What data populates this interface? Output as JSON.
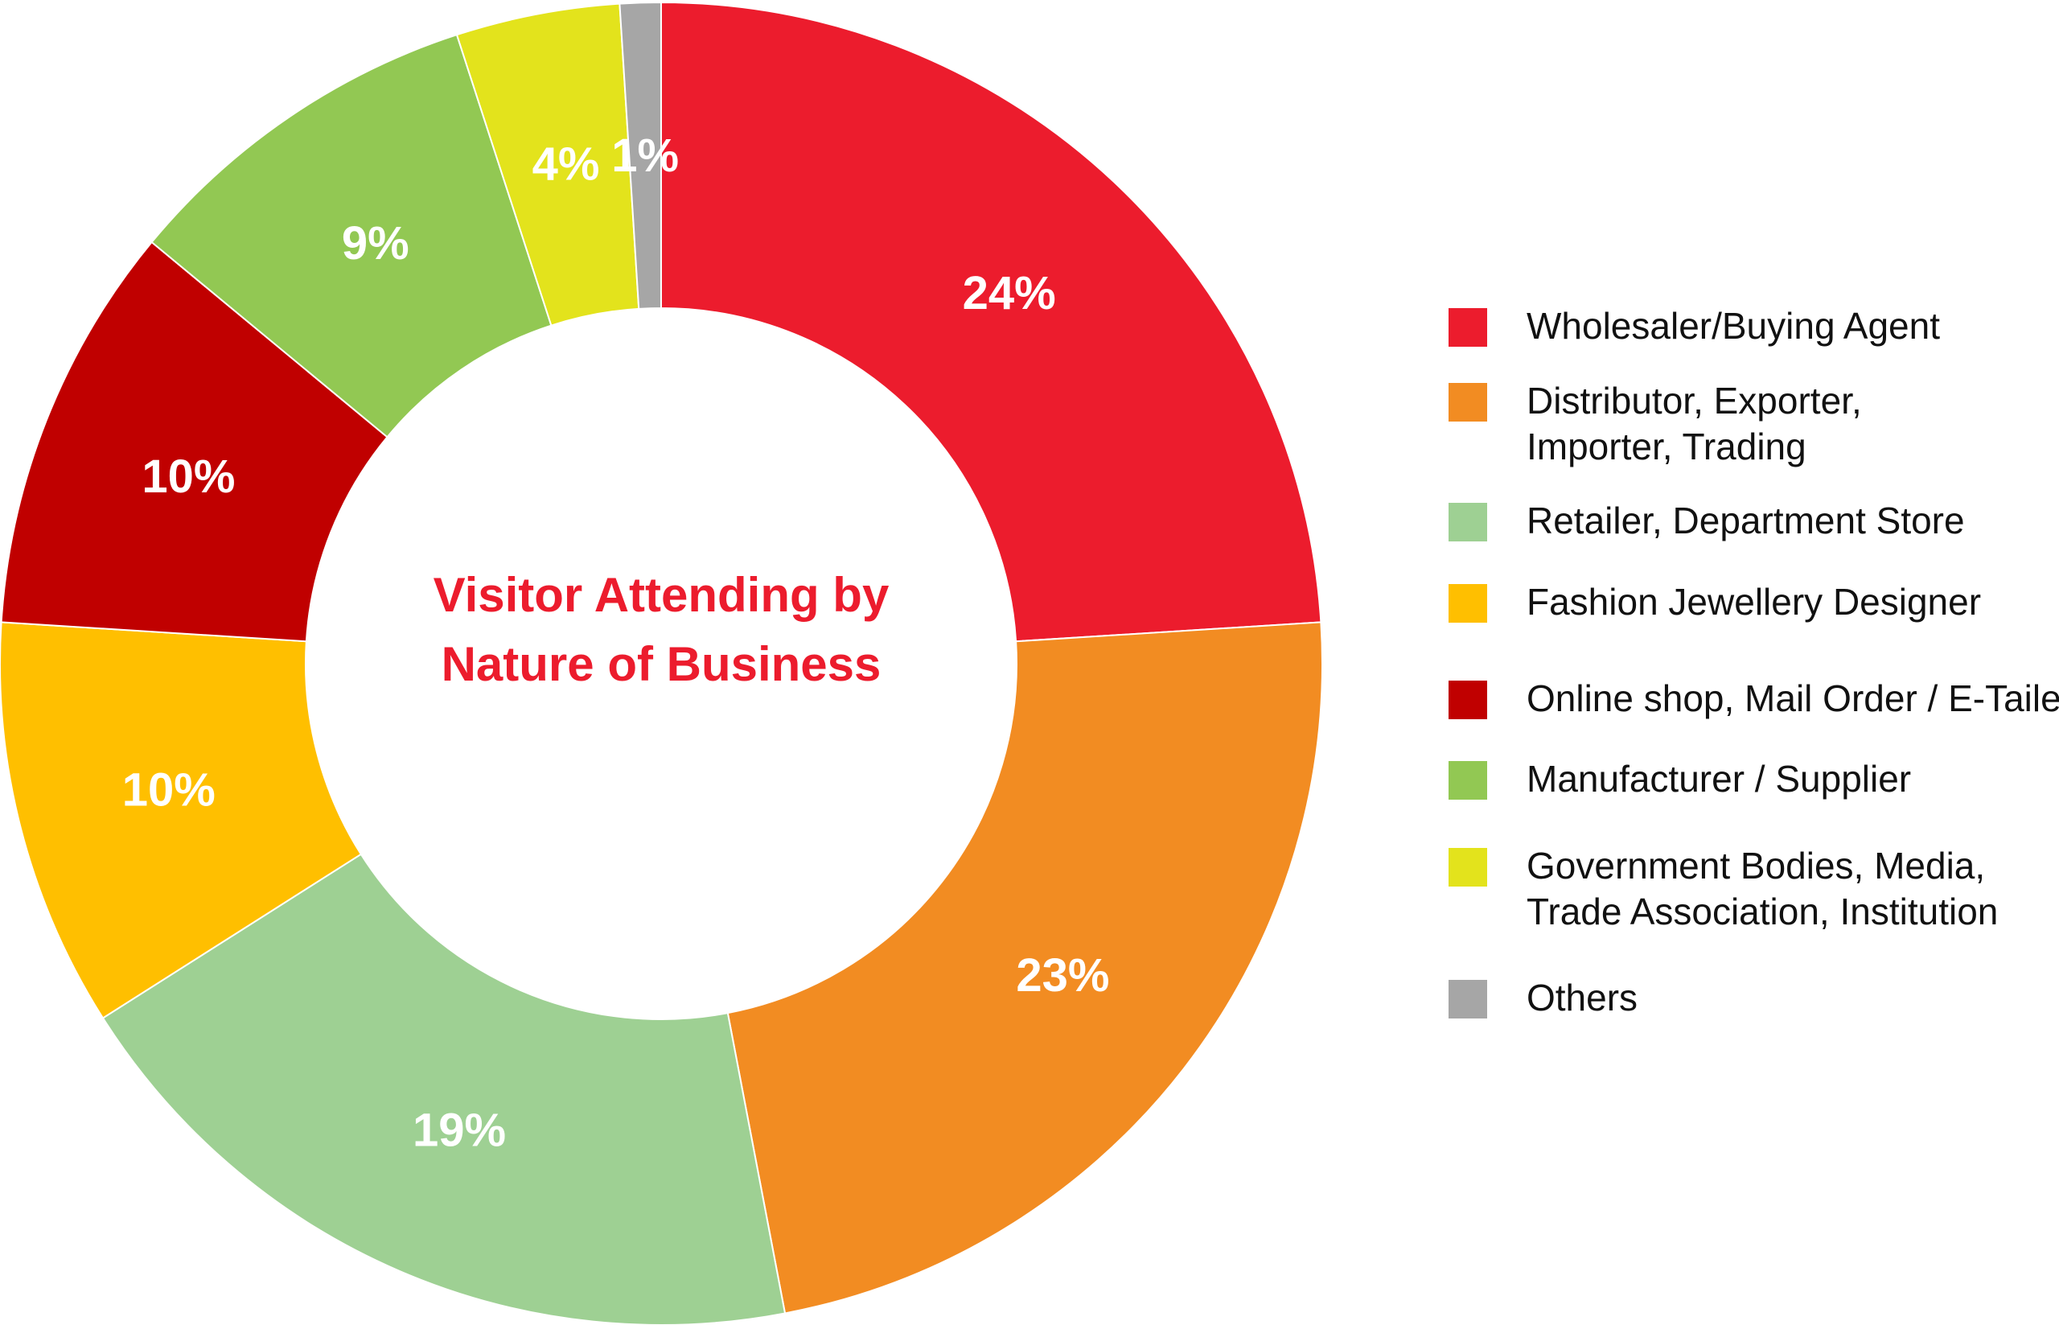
{
  "chart_data": {
    "type": "pie",
    "title": "Visitor Attending by Nature of Business",
    "title_lines": [
      "Visitor Attending by",
      "Nature of Business"
    ],
    "legend_position": "right",
    "slices": [
      {
        "label": "Wholesaler/Buying Agent",
        "legend_lines": [
          "Wholesaler/Buying Agent"
        ],
        "value": 24,
        "display": "24%",
        "color": "#ec1c2d"
      },
      {
        "label": "Distributor, Exporter, Importer, Trading",
        "legend_lines": [
          "Distributor, Exporter,",
          "Importer, Trading"
        ],
        "value": 23,
        "display": "23%",
        "color": "#f28c22"
      },
      {
        "label": "Retailer, Department Store",
        "legend_lines": [
          "Retailer, Department Store"
        ],
        "value": 19,
        "display": "19%",
        "color": "#9ed093"
      },
      {
        "label": "Fashion Jewellery Designer",
        "legend_lines": [
          "Fashion Jewellery Designer"
        ],
        "value": 10,
        "display": "10%",
        "color": "#ffbf00"
      },
      {
        "label": "Online shop, Mail Order / E-Tailer",
        "legend_lines": [
          "Online shop, Mail Order / E-Tailer"
        ],
        "value": 10,
        "display": "10%",
        "color": "#c00000"
      },
      {
        "label": "Manufacturer / Supplier",
        "legend_lines": [
          "Manufacturer / Supplier"
        ],
        "value": 9,
        "display": "9%",
        "color": "#92c853"
      },
      {
        "label": "Government Bodies, Media, Trade Association, Institution",
        "legend_lines": [
          "Government Bodies, Media,",
          "Trade Association, Institution"
        ],
        "value": 4,
        "display": "4%",
        "color": "#e3e31c"
      },
      {
        "label": "Others",
        "legend_lines": [
          "Others"
        ],
        "value": 1,
        "display": "1%",
        "color": "#a6a6a6"
      }
    ]
  }
}
